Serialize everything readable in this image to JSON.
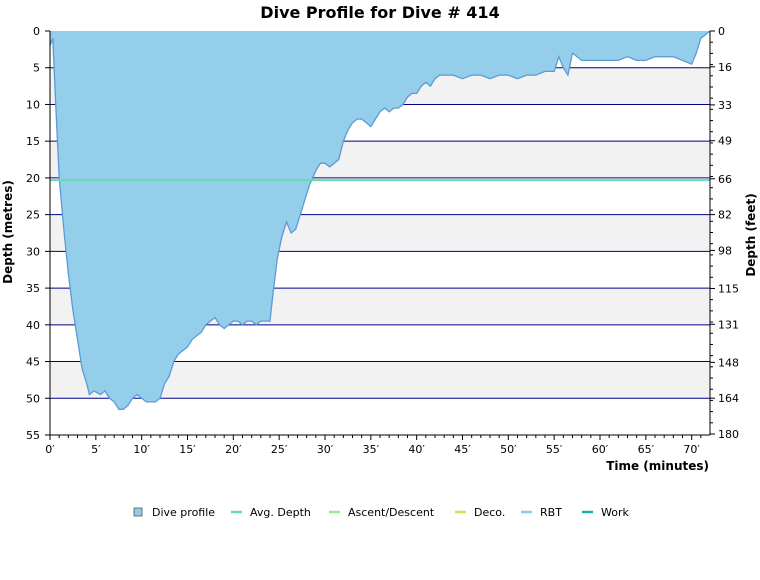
{
  "chart_data": {
    "type": "area",
    "title": "Dive Profile for Dive # 414",
    "xlabel": "Time (minutes)",
    "ylabel_left": "Depth (metres)",
    "ylabel_right": "Depth (feet)",
    "xlim": [
      0,
      72
    ],
    "ylim": [
      0,
      55
    ],
    "y_inverted": true,
    "x_ticks": [
      "0′",
      "5′",
      "10′",
      "15′",
      "20′",
      "25′",
      "30′",
      "35′",
      "40′",
      "45′",
      "50′",
      "55′",
      "60′",
      "65′",
      "70′"
    ],
    "x_tick_values": [
      0,
      5,
      10,
      15,
      20,
      25,
      30,
      35,
      40,
      45,
      50,
      55,
      60,
      65,
      70
    ],
    "y_ticks_left": [
      0,
      5,
      10,
      15,
      20,
      25,
      30,
      35,
      40,
      45,
      50,
      55
    ],
    "y_ticks_right_values": [
      0,
      16,
      33,
      49,
      66,
      82,
      98,
      115,
      131,
      148,
      164,
      180
    ],
    "y_ticks_right_labels": [
      "0",
      "16",
      "33",
      "49",
      "66",
      "82",
      "98",
      "115",
      "131",
      "148",
      "164",
      "180"
    ],
    "grid": true,
    "legend_position": "bottom",
    "avg_depth": 20.3,
    "colors": {
      "profile_fill": "#94CEEA",
      "profile_line": "#5B9BD5",
      "avg_depth": "#66DDAA",
      "ascent_descent": "#90EE90",
      "deco": "#D4E157",
      "rbt": "#87CEEB",
      "work": "#20B2AA",
      "gridline": "#00008B",
      "band": "#F2F2F2"
    },
    "series": [
      {
        "name": "Dive profile",
        "x": [
          0,
          0.3,
          0.7,
          1,
          1.5,
          2,
          2.5,
          3,
          3.5,
          4,
          4.3,
          4.8,
          5.5,
          6,
          6.5,
          7,
          7.5,
          8,
          8.5,
          9,
          9.5,
          10,
          10.5,
          11,
          11.5,
          12,
          12.5,
          13,
          13.5,
          14,
          14.5,
          15,
          15.5,
          16,
          16.5,
          17,
          17.5,
          18,
          18.5,
          19,
          19.5,
          20,
          20.5,
          21,
          21.5,
          22,
          22.5,
          23,
          23.5,
          24,
          24.3,
          24.8,
          25.3,
          25.8,
          26.3,
          26.8,
          27.3,
          27.8,
          28.3,
          29,
          29.5,
          30,
          30.5,
          31,
          31.5,
          32,
          32.5,
          33,
          33.5,
          34,
          34.5,
          35,
          35.5,
          36,
          36.5,
          37,
          37.5,
          38,
          38.5,
          39,
          39.5,
          40,
          40.5,
          41,
          41.5,
          42,
          42.5,
          43,
          44,
          45,
          46,
          47,
          48,
          49,
          50,
          51,
          52,
          53,
          54,
          55,
          55.5,
          56,
          56.5,
          57,
          57.5,
          58,
          59,
          60,
          61,
          62,
          63,
          64,
          65,
          66,
          67,
          68,
          69,
          70,
          70.5,
          71,
          71.5,
          72
        ],
        "values": [
          2,
          1,
          12,
          20,
          27,
          33,
          38,
          42,
          46,
          48,
          49.5,
          49,
          49.5,
          49,
          50,
          50.5,
          51.5,
          51.5,
          51,
          50,
          49.5,
          50,
          50.5,
          50.5,
          50.5,
          50,
          48,
          47,
          45,
          44,
          43.5,
          43,
          42,
          41.5,
          41,
          40,
          39.5,
          39,
          40,
          40.5,
          40,
          39.5,
          39.5,
          40,
          39.5,
          39.5,
          40,
          39.5,
          39.5,
          39.5,
          36,
          31,
          28,
          26,
          27.5,
          27,
          25,
          23,
          21,
          19,
          18,
          18,
          18.5,
          18,
          17.5,
          15,
          13.5,
          12.5,
          12,
          12,
          12.5,
          13,
          12,
          11,
          10.5,
          11,
          10.5,
          10.5,
          10,
          9,
          8.5,
          8.5,
          7.5,
          7,
          7.5,
          6.5,
          6,
          6,
          6,
          6.5,
          6,
          6,
          6.5,
          6,
          6,
          6.5,
          6,
          6,
          5.5,
          5.5,
          3.5,
          5,
          6,
          3,
          3.5,
          4,
          4,
          4,
          4,
          4,
          3.5,
          4,
          4,
          3.5,
          3.5,
          3.5,
          4,
          4.5,
          3,
          1,
          0.5,
          0
        ]
      }
    ],
    "legend": [
      {
        "label": "Dive profile",
        "color": "#94CEEA",
        "kind": "box"
      },
      {
        "label": "Avg. Depth",
        "color": "#66DDAA",
        "kind": "line"
      },
      {
        "label": "Ascent/Descent",
        "color": "#90EE90",
        "kind": "line"
      },
      {
        "label": "Deco.",
        "color": "#D4E157",
        "kind": "line"
      },
      {
        "label": "RBT",
        "color": "#87CEEB",
        "kind": "line"
      },
      {
        "label": "Work",
        "color": "#20B2AA",
        "kind": "line"
      }
    ]
  }
}
